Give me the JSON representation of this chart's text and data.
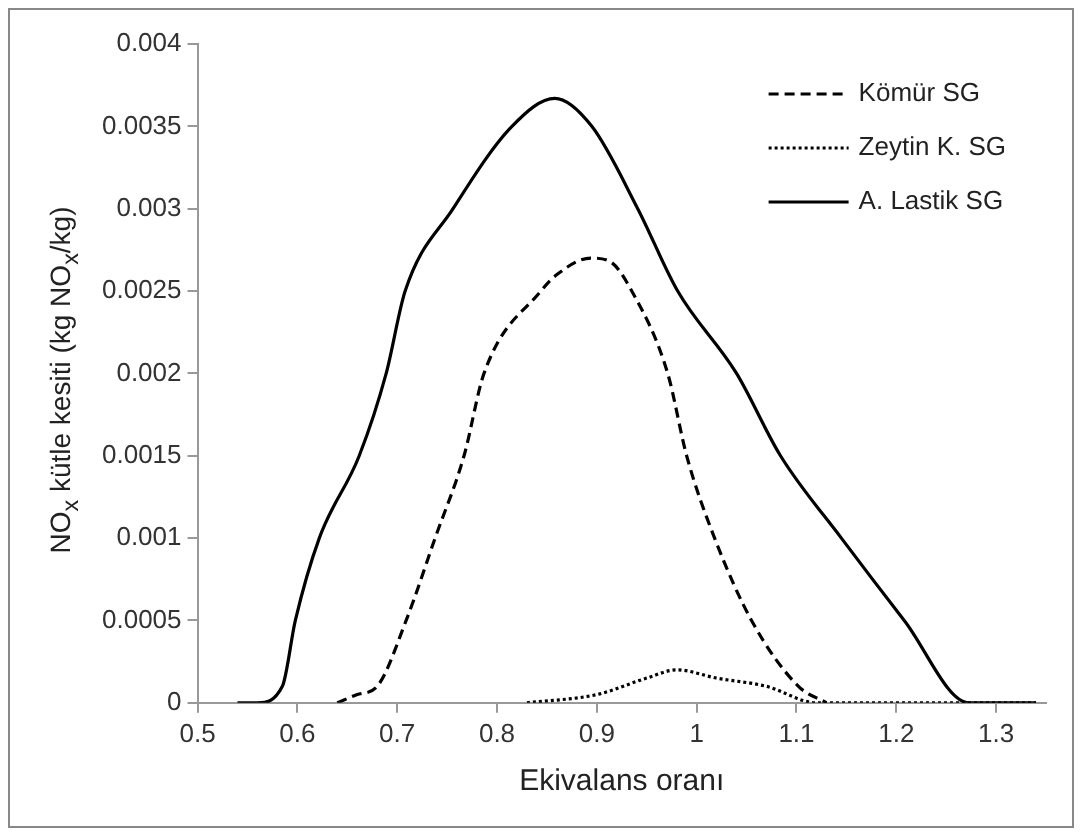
{
  "chart_data": {
    "type": "line",
    "xlabel": "Ekivalans oranı",
    "ylabel": "NO$_{x}$ kütle kesiti (kg NO$_{x}$/kg)",
    "xlim": [
      0.5,
      1.35
    ],
    "xticks": [
      0.5,
      0.6,
      0.7,
      0.8,
      0.9,
      1,
      1.1,
      1.2,
      1.3
    ],
    "ylim": [
      0,
      0.004
    ],
    "yticks": [
      0,
      0.0005,
      0.001,
      0.0015,
      0.002,
      0.0025,
      0.003,
      0.0035,
      0.004
    ],
    "grid": false,
    "legend": "top right",
    "marker": "none",
    "series": [
      {
        "name": "Kömür SG",
        "color": "#000000",
        "line_style": "dashed",
        "x": [
          0.64,
          0.66,
          0.68,
          0.709,
          0.738,
          0.767,
          0.787,
          0.844,
          0.86,
          0.894,
          0.913,
          0.935,
          0.971,
          0.99,
          1.018,
          1.055,
          1.102,
          1.13
        ],
        "values": [
          0,
          5e-05,
          0.0001,
          0.0005,
          0.001,
          0.0015,
          0.002,
          0.0025,
          0.0026,
          0.0027,
          0.00268,
          0.0025,
          0.002,
          0.0015,
          0.001,
          0.0005,
          0.0001,
          0
        ]
      },
      {
        "name": "Zeytin K. SG",
        "color": "#000000",
        "line_style": "dotted",
        "x": [
          0.83,
          0.9,
          0.95,
          0.98,
          1.02,
          1.07,
          1.12,
          1.34
        ],
        "values": [
          0,
          5e-05,
          0.00015,
          0.0002,
          0.00015,
          0.0001,
          0,
          0
        ]
      },
      {
        "name": "A. Lastik SG",
        "color": "#000000",
        "line_style": "solid",
        "x": [
          0.54,
          0.56,
          0.585,
          0.598,
          0.622,
          0.662,
          0.689,
          0.708,
          0.756,
          0.815,
          0.858,
          0.895,
          0.941,
          0.981,
          1.04,
          1.084,
          1.145,
          1.208,
          1.273,
          1.34
        ],
        "values": [
          0,
          0,
          0.0001,
          0.0005,
          0.001,
          0.0015,
          0.002,
          0.0025,
          0.003,
          0.0035,
          0.00367,
          0.0035,
          0.003,
          0.0025,
          0.002,
          0.0015,
          0.001,
          0.0005,
          0,
          0
        ]
      }
    ]
  }
}
